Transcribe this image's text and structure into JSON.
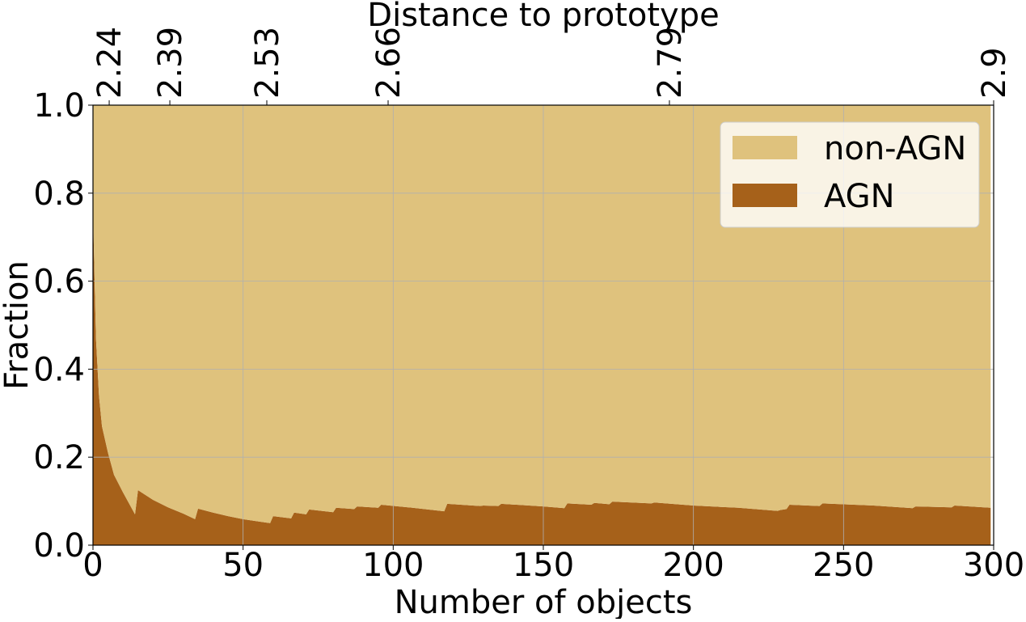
{
  "chart_data": {
    "type": "stacked_area",
    "xlabel": "Number of objects",
    "ylabel": "Fraction",
    "x2label": "Distance to prototype",
    "x": [
      0,
      1,
      2,
      3,
      5,
      7,
      10,
      14,
      15,
      20,
      25,
      30,
      34,
      35,
      40,
      45,
      50,
      55,
      59,
      60,
      66,
      67,
      71,
      72,
      80,
      81,
      87,
      88,
      95,
      96,
      105,
      117,
      118,
      129,
      130,
      135,
      136,
      150,
      157,
      158,
      166,
      167,
      172,
      173,
      186,
      187,
      200,
      215,
      228,
      229,
      231,
      232,
      242,
      243,
      260,
      273,
      274,
      286,
      287,
      299
    ],
    "series": [
      {
        "name": "AGN",
        "color": "#a6611a",
        "values": [
          0.76,
          0.47,
          0.34,
          0.27,
          0.21,
          0.16,
          0.12,
          0.07,
          0.125,
          0.103,
          0.086,
          0.072,
          0.059,
          0.083,
          0.074,
          0.066,
          0.059,
          0.054,
          0.05,
          0.066,
          0.061,
          0.074,
          0.07,
          0.081,
          0.075,
          0.085,
          0.082,
          0.088,
          0.085,
          0.092,
          0.086,
          0.077,
          0.094,
          0.089,
          0.09,
          0.089,
          0.094,
          0.088,
          0.084,
          0.095,
          0.092,
          0.096,
          0.093,
          0.099,
          0.095,
          0.097,
          0.09,
          0.085,
          0.078,
          0.08,
          0.082,
          0.092,
          0.089,
          0.095,
          0.09,
          0.084,
          0.088,
          0.086,
          0.09,
          0.085
        ]
      },
      {
        "name": "non-AGN",
        "color": "#dfc27d",
        "values": [
          0.24,
          0.53,
          0.66,
          0.73,
          0.79,
          0.84,
          0.88,
          0.93,
          0.875,
          0.897,
          0.914,
          0.928,
          0.941,
          0.917,
          0.926,
          0.934,
          0.941,
          0.946,
          0.95,
          0.934,
          0.939,
          0.926,
          0.93,
          0.919,
          0.925,
          0.915,
          0.918,
          0.912,
          0.915,
          0.908,
          0.914,
          0.923,
          0.906,
          0.911,
          0.91,
          0.911,
          0.906,
          0.912,
          0.916,
          0.905,
          0.908,
          0.904,
          0.907,
          0.901,
          0.905,
          0.903,
          0.91,
          0.915,
          0.922,
          0.92,
          0.918,
          0.908,
          0.911,
          0.905,
          0.91,
          0.916,
          0.912,
          0.914,
          0.91,
          0.915
        ]
      }
    ],
    "xlim": [
      0,
      300
    ],
    "xticks": [
      0,
      50,
      100,
      150,
      200,
      250,
      300
    ],
    "ylim": [
      0,
      1
    ],
    "yticks": [
      {
        "value": 0,
        "label": "0.0"
      },
      0.2,
      0.4,
      0.6,
      0.8,
      {
        "value": 1,
        "label": "1.0"
      }
    ],
    "x2ticks": [
      2.24,
      2.39,
      2.53,
      2.66,
      2.79,
      2.9
    ],
    "x2tick_positions": [
      5.4,
      25.6,
      57.9,
      98.3,
      192,
      300
    ],
    "grid": true,
    "legend": "upper right"
  }
}
